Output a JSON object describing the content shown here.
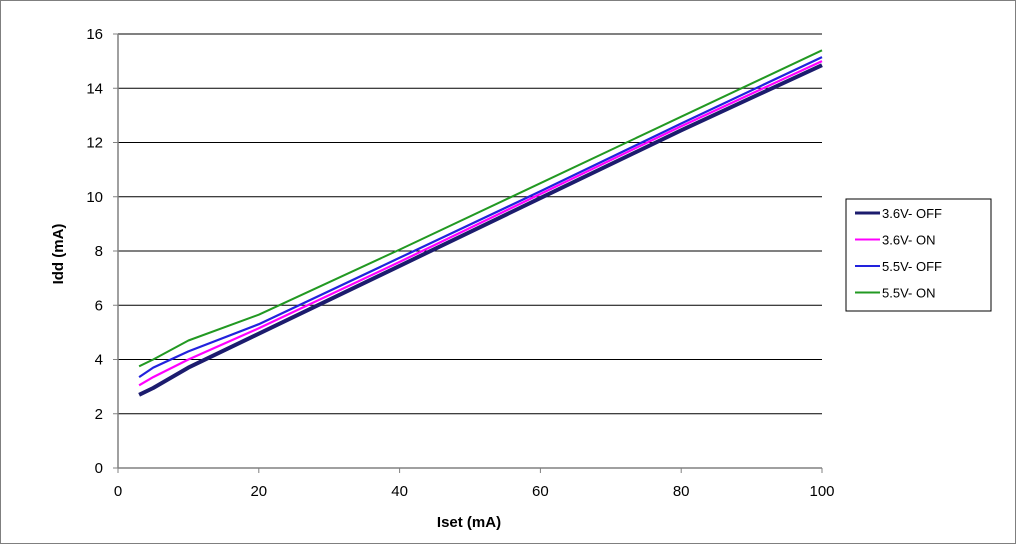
{
  "chart_data": {
    "type": "line",
    "xlabel": "Iset (mA)",
    "ylabel": "Idd (mA)",
    "xlim": [
      0,
      100
    ],
    "ylim": [
      0,
      16
    ],
    "xticks": [
      0,
      20,
      40,
      60,
      80,
      100
    ],
    "yticks": [
      0,
      2,
      4,
      6,
      8,
      10,
      12,
      14,
      16
    ],
    "grid": "horizontal",
    "legend_position": "right",
    "series": [
      {
        "name": "3.6V- OFF",
        "color": "#1c1c6e",
        "x": [
          3,
          5,
          10,
          20,
          40,
          60,
          80,
          100
        ],
        "y": [
          2.7,
          2.95,
          3.7,
          4.95,
          7.45,
          9.95,
          12.45,
          14.85
        ]
      },
      {
        "name": "3.6V- ON",
        "color": "#ff00ff",
        "x": [
          3,
          5,
          10,
          20,
          40,
          60,
          80,
          100
        ],
        "y": [
          3.05,
          3.35,
          4.0,
          5.15,
          7.6,
          10.1,
          12.6,
          15.0
        ]
      },
      {
        "name": "5.5V- OFF",
        "color": "#2222dd",
        "x": [
          3,
          5,
          10,
          20,
          40,
          60,
          80,
          100
        ],
        "y": [
          3.35,
          3.7,
          4.3,
          5.3,
          7.75,
          10.2,
          12.7,
          15.15
        ]
      },
      {
        "name": "5.5V- ON",
        "color": "#229922",
        "x": [
          3,
          5,
          10,
          20,
          40,
          60,
          80,
          100
        ],
        "y": [
          3.75,
          4.0,
          4.7,
          5.65,
          8.05,
          10.5,
          12.95,
          15.4
        ]
      }
    ]
  }
}
